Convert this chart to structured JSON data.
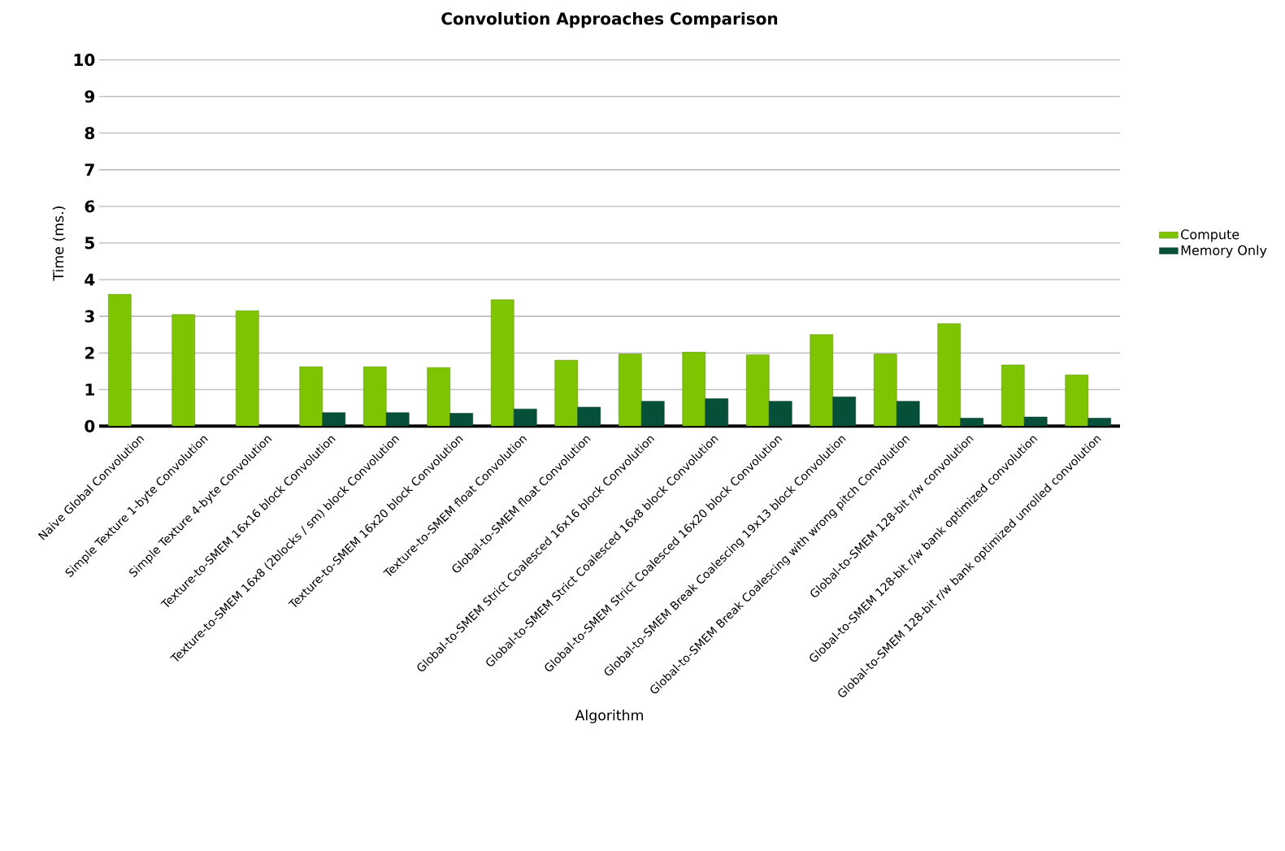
{
  "chart_data": {
    "type": "bar",
    "title": "Convolution Approaches Comparison",
    "xlabel": "Algorithm",
    "ylabel": "Time (ms.)",
    "categories": [
      "Naive Global Convolution",
      "Simple Texture 1-byte Convolution",
      "Simple Texture 4-byte Convolution",
      "Texture-to-SMEM 16x16 block Convolution",
      "Texture-to-SMEM 16x8 (2blocks / sm) block Convolution",
      "Texture-to-SMEM 16x20 block Convolution",
      "Texture-to-SMEM float Convolution",
      "Global-to-SMEM float Convolution",
      "Global-to-SMEM Strict Coalesced 16x16 block Convolution",
      "Global-to-SMEM Strict Coalesced 16x8 block Convolution",
      "Global-to-SMEM Strict Coalesced 16x20 block Convolution",
      "Global-to-SMEM Break Coalescing 19x13 block Convolution",
      "Global-to-SMEM Break Coalescing with wrong pitch Convolution",
      "Global-to-SMEM 128-bit r/w convolution",
      "Global-to-SMEM 128-bit r/w bank optimized convolution",
      "Global-to-SMEM 128-bit r/w bank optimized unrolled convolution"
    ],
    "series": [
      {
        "name": "Compute",
        "color": "#7fc400",
        "values": [
          3.6,
          3.05,
          3.15,
          1.62,
          1.62,
          1.6,
          3.45,
          1.8,
          1.97,
          2.02,
          1.95,
          2.5,
          1.97,
          2.8,
          1.67,
          1.4
        ]
      },
      {
        "name": "Memory Only",
        "color": "#064f38",
        "values": [
          null,
          null,
          null,
          0.37,
          0.37,
          0.35,
          0.47,
          0.52,
          0.68,
          0.75,
          0.68,
          0.8,
          0.68,
          0.22,
          0.25,
          0.22
        ]
      }
    ],
    "ylim": [
      0,
      10
    ],
    "yticks": [
      0,
      1,
      2,
      3,
      4,
      5,
      6,
      7,
      8,
      9,
      10
    ],
    "grid": "y",
    "legend": "right"
  }
}
